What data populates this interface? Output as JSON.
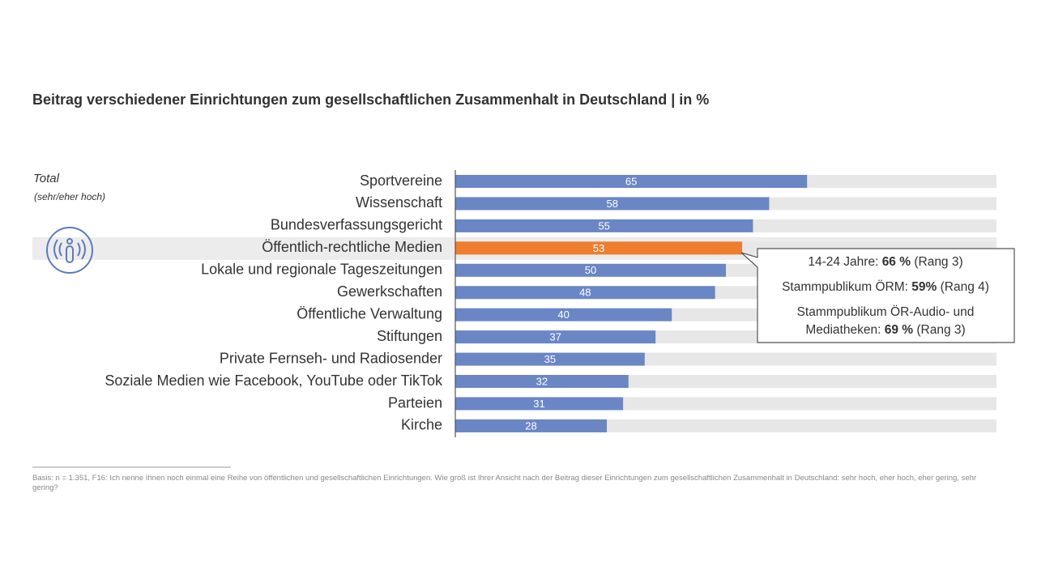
{
  "chart_data": {
    "type": "bar",
    "orientation": "horizontal",
    "title": "Beitrag verschiedener Einrichtungen zum gesellschaftlichen Zusammenhalt in Deutschland | in %",
    "group_label": "Total",
    "group_sublabel": "(sehr/eher hoch)",
    "categories": [
      "Sportvereine",
      "Wissenschaft",
      "Bundesverfassungsgericht",
      "Öffentlich-rechtliche Medien",
      "Lokale und regionale Tageszeitungen",
      "Gewerkschaften",
      "Öffentliche Verwaltung",
      "Stiftungen",
      "Private Fernseh- und Radiosender",
      "Soziale Medien wie Facebook, YouTube oder TikTok",
      "Parteien",
      "Kirche"
    ],
    "values": [
      65,
      58,
      55,
      53,
      50,
      48,
      40,
      37,
      35,
      32,
      31,
      28
    ],
    "colors": [
      "#6a86c5",
      "#6a86c5",
      "#6a86c5",
      "#ee7d30",
      "#6a86c5",
      "#6a86c5",
      "#6a86c5",
      "#6a86c5",
      "#6a86c5",
      "#6a86c5",
      "#6a86c5",
      "#6a86c5"
    ],
    "track_color": "#e7e7e7",
    "xlim": [
      0,
      100
    ],
    "callout": [
      [
        {
          "text": "14-24 Jahre: "
        },
        {
          "text": "66 %",
          "bold": true
        },
        {
          "text": " (Rang 3)"
        }
      ],
      [
        {
          "text": "Stammpublikum ÖRM: "
        },
        {
          "text": "59%",
          "bold": true
        },
        {
          "text": " (Rang 4)"
        }
      ],
      [
        {
          "text": "Stammpublikum ÖR-Audio- und"
        }
      ],
      [
        {
          "text": "Mediatheken: "
        },
        {
          "text": "69 %",
          "bold": true
        },
        {
          "text": " (Rang 3)"
        }
      ]
    ],
    "footnote": "Basis: n = 1.351, F16: Ich nenne Ihnen noch einmal eine Reihe von öffentlichen und gesellschaftlichen Einrichtungen. Wie groß ist Ihrer Ansicht nach der Beitrag dieser Einrichtungen zum gesellschaftlichen Zusammenhalt in Deutschland: sehr hoch, eher hoch, eher gering, sehr gering?"
  }
}
